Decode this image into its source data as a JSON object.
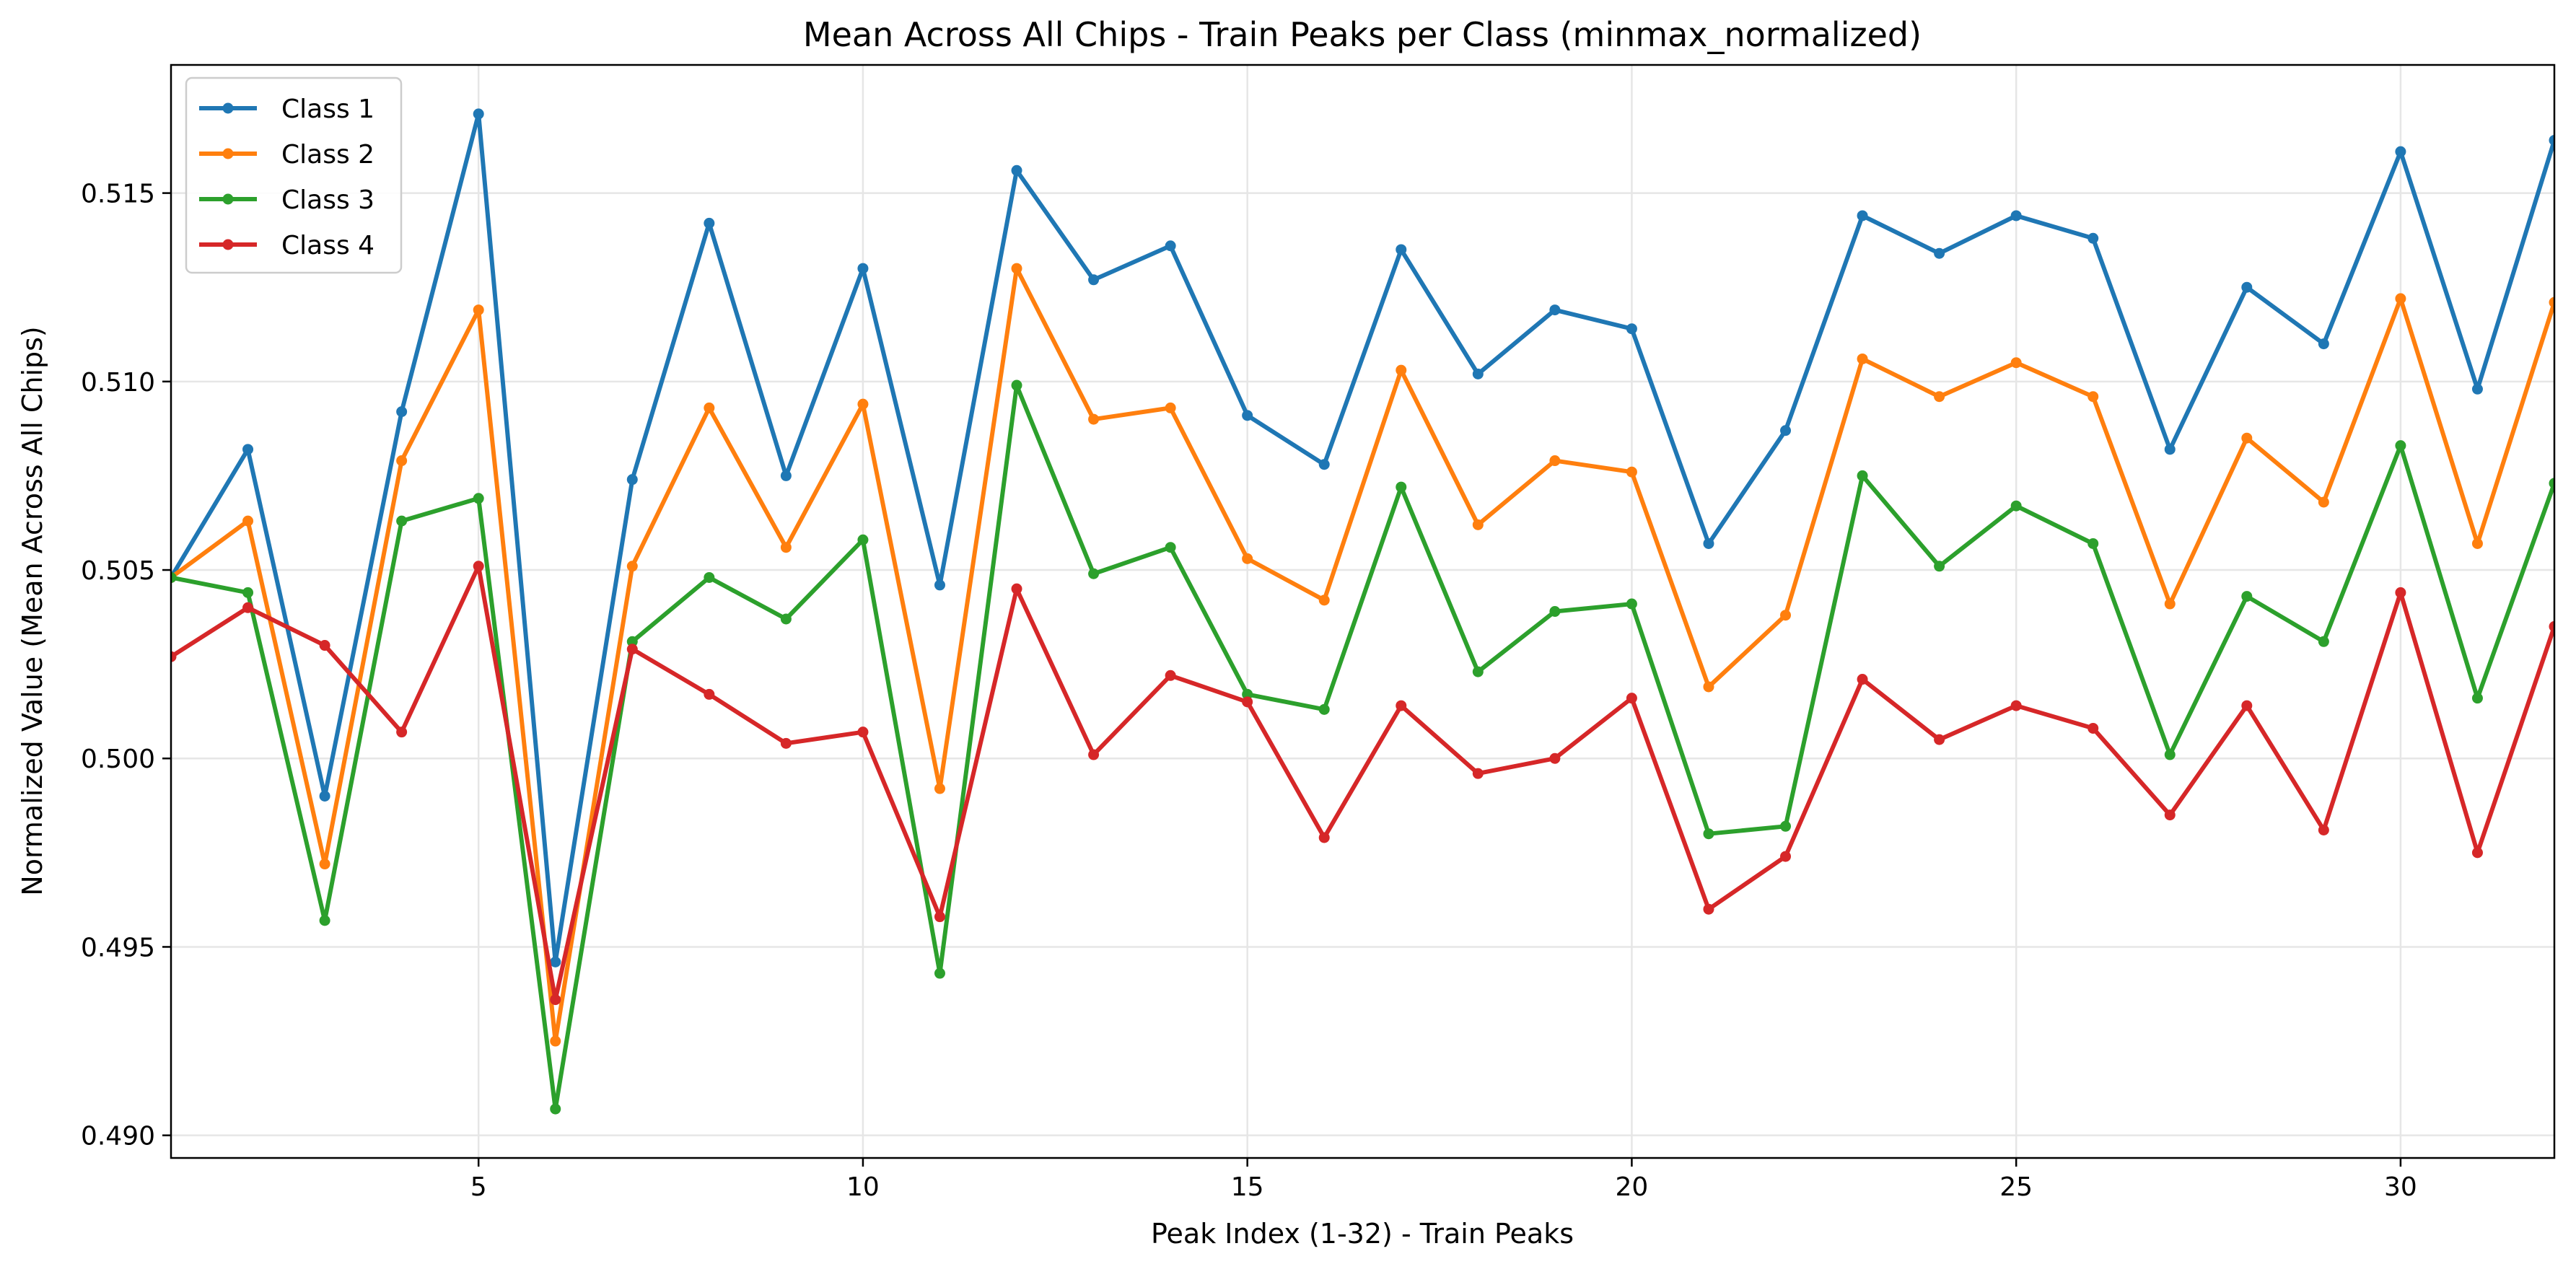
{
  "chart_data": {
    "type": "line",
    "title": "Mean Across All Chips - Train Peaks per Class (minmax_normalized)",
    "xlabel": "Peak Index (1-32) - Train Peaks",
    "ylabel": "Normalized Value (Mean Across All Chips)",
    "xlim": [
      1,
      32
    ],
    "ylim": [
      0.4894,
      0.5184
    ],
    "xticks": [
      5,
      10,
      15,
      20,
      25,
      30
    ],
    "yticks": [
      0.49,
      0.495,
      0.5,
      0.505,
      0.51,
      0.515
    ],
    "ytick_labels": [
      "0.490",
      "0.495",
      "0.500",
      "0.505",
      "0.510",
      "0.515"
    ],
    "grid": true,
    "legend_position": "top-left",
    "x": [
      1,
      2,
      3,
      4,
      5,
      6,
      7,
      8,
      9,
      10,
      11,
      12,
      13,
      14,
      15,
      16,
      17,
      18,
      19,
      20,
      21,
      22,
      23,
      24,
      25,
      26,
      27,
      28,
      29,
      30,
      31,
      32
    ],
    "series": [
      {
        "name": "Class 1",
        "color": "#1f77b4",
        "values": [
          0.5048,
          0.5082,
          0.499,
          0.5092,
          0.5171,
          0.4946,
          0.5074,
          0.5142,
          0.5075,
          0.513,
          0.5046,
          0.5156,
          0.5127,
          0.5136,
          0.5091,
          0.5078,
          0.5135,
          0.5102,
          0.5119,
          0.5114,
          0.5057,
          0.5087,
          0.5144,
          0.5134,
          0.5144,
          0.5138,
          0.5082,
          0.5125,
          0.511,
          0.5161,
          0.5098,
          0.5164
        ]
      },
      {
        "name": "Class 2",
        "color": "#ff7f0e",
        "values": [
          0.5048,
          0.5063,
          0.4972,
          0.5079,
          0.5119,
          0.4925,
          0.5051,
          0.5093,
          0.5056,
          0.5094,
          0.4992,
          0.513,
          0.509,
          0.5093,
          0.5053,
          0.5042,
          0.5103,
          0.5062,
          0.5079,
          0.5076,
          0.5019,
          0.5038,
          0.5106,
          0.5096,
          0.5105,
          0.5096,
          0.5041,
          0.5085,
          0.5068,
          0.5122,
          0.5057,
          0.5121
        ]
      },
      {
        "name": "Class 3",
        "color": "#2ca02c",
        "values": [
          0.5048,
          0.5044,
          0.4957,
          0.5063,
          0.5069,
          0.4907,
          0.5031,
          0.5048,
          0.5037,
          0.5058,
          0.4943,
          0.5099,
          0.5049,
          0.5056,
          0.5017,
          0.5013,
          0.5072,
          0.5023,
          0.5039,
          0.5041,
          0.498,
          0.4982,
          0.5075,
          0.5051,
          0.5067,
          0.5057,
          0.5001,
          0.5043,
          0.5031,
          0.5083,
          0.5016,
          0.5073
        ]
      },
      {
        "name": "Class 4",
        "color": "#d62728",
        "values": [
          0.5027,
          0.504,
          0.503,
          0.5007,
          0.5051,
          0.4936,
          0.5029,
          0.5017,
          0.5004,
          0.5007,
          0.4958,
          0.5045,
          0.5001,
          0.5022,
          0.5015,
          0.4979,
          0.5014,
          0.4996,
          0.5,
          0.5016,
          0.496,
          0.4974,
          0.5021,
          0.5005,
          0.5014,
          0.5008,
          0.4985,
          0.5014,
          0.4981,
          0.5044,
          0.4975,
          0.5035
        ]
      }
    ]
  }
}
